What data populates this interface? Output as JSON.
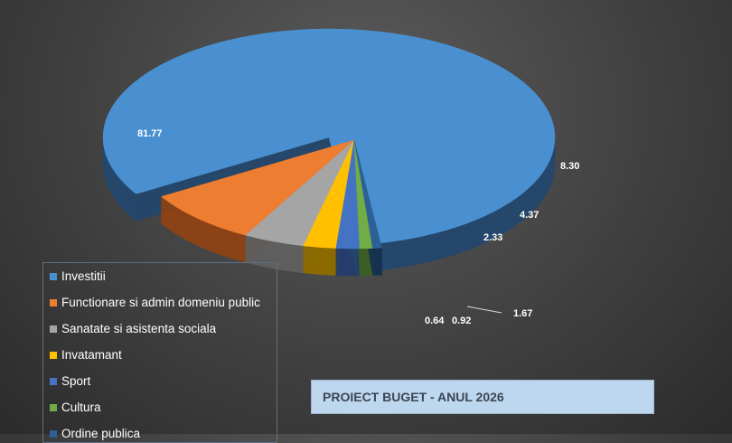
{
  "chart_data": {
    "type": "pie",
    "title": "PROIECT BUGET - ANUL 2026",
    "legend_position": "bottom-left",
    "slices": [
      {
        "label": "Investitii",
        "value": 81.77,
        "display": "81.77",
        "color": "#4a90d0",
        "side": "#24476b"
      },
      {
        "label": "Functionare si admin domeniu public",
        "value": 8.3,
        "display": "8.30",
        "color": "#ed7d31",
        "side": "#8a4216"
      },
      {
        "label": "Sanatate si asistenta sociala",
        "value": 4.37,
        "display": "4.37",
        "color": "#a5a5a5",
        "side": "#5e5e5e"
      },
      {
        "label": "Invatamant",
        "value": 2.33,
        "display": "2.33",
        "color": "#ffc000",
        "side": "#8c6a00"
      },
      {
        "label": "Sport",
        "value": 1.67,
        "display": "1.67",
        "color": "#4472c4",
        "side": "#243d6b"
      },
      {
        "label": "Cultura",
        "value": 0.92,
        "display": "0.92",
        "color": "#70ad47",
        "side": "#3c5e24"
      },
      {
        "label": "Ordine publica",
        "value": 0.64,
        "display": "0.64",
        "color": "#2e5f96",
        "side": "#173250"
      }
    ]
  }
}
